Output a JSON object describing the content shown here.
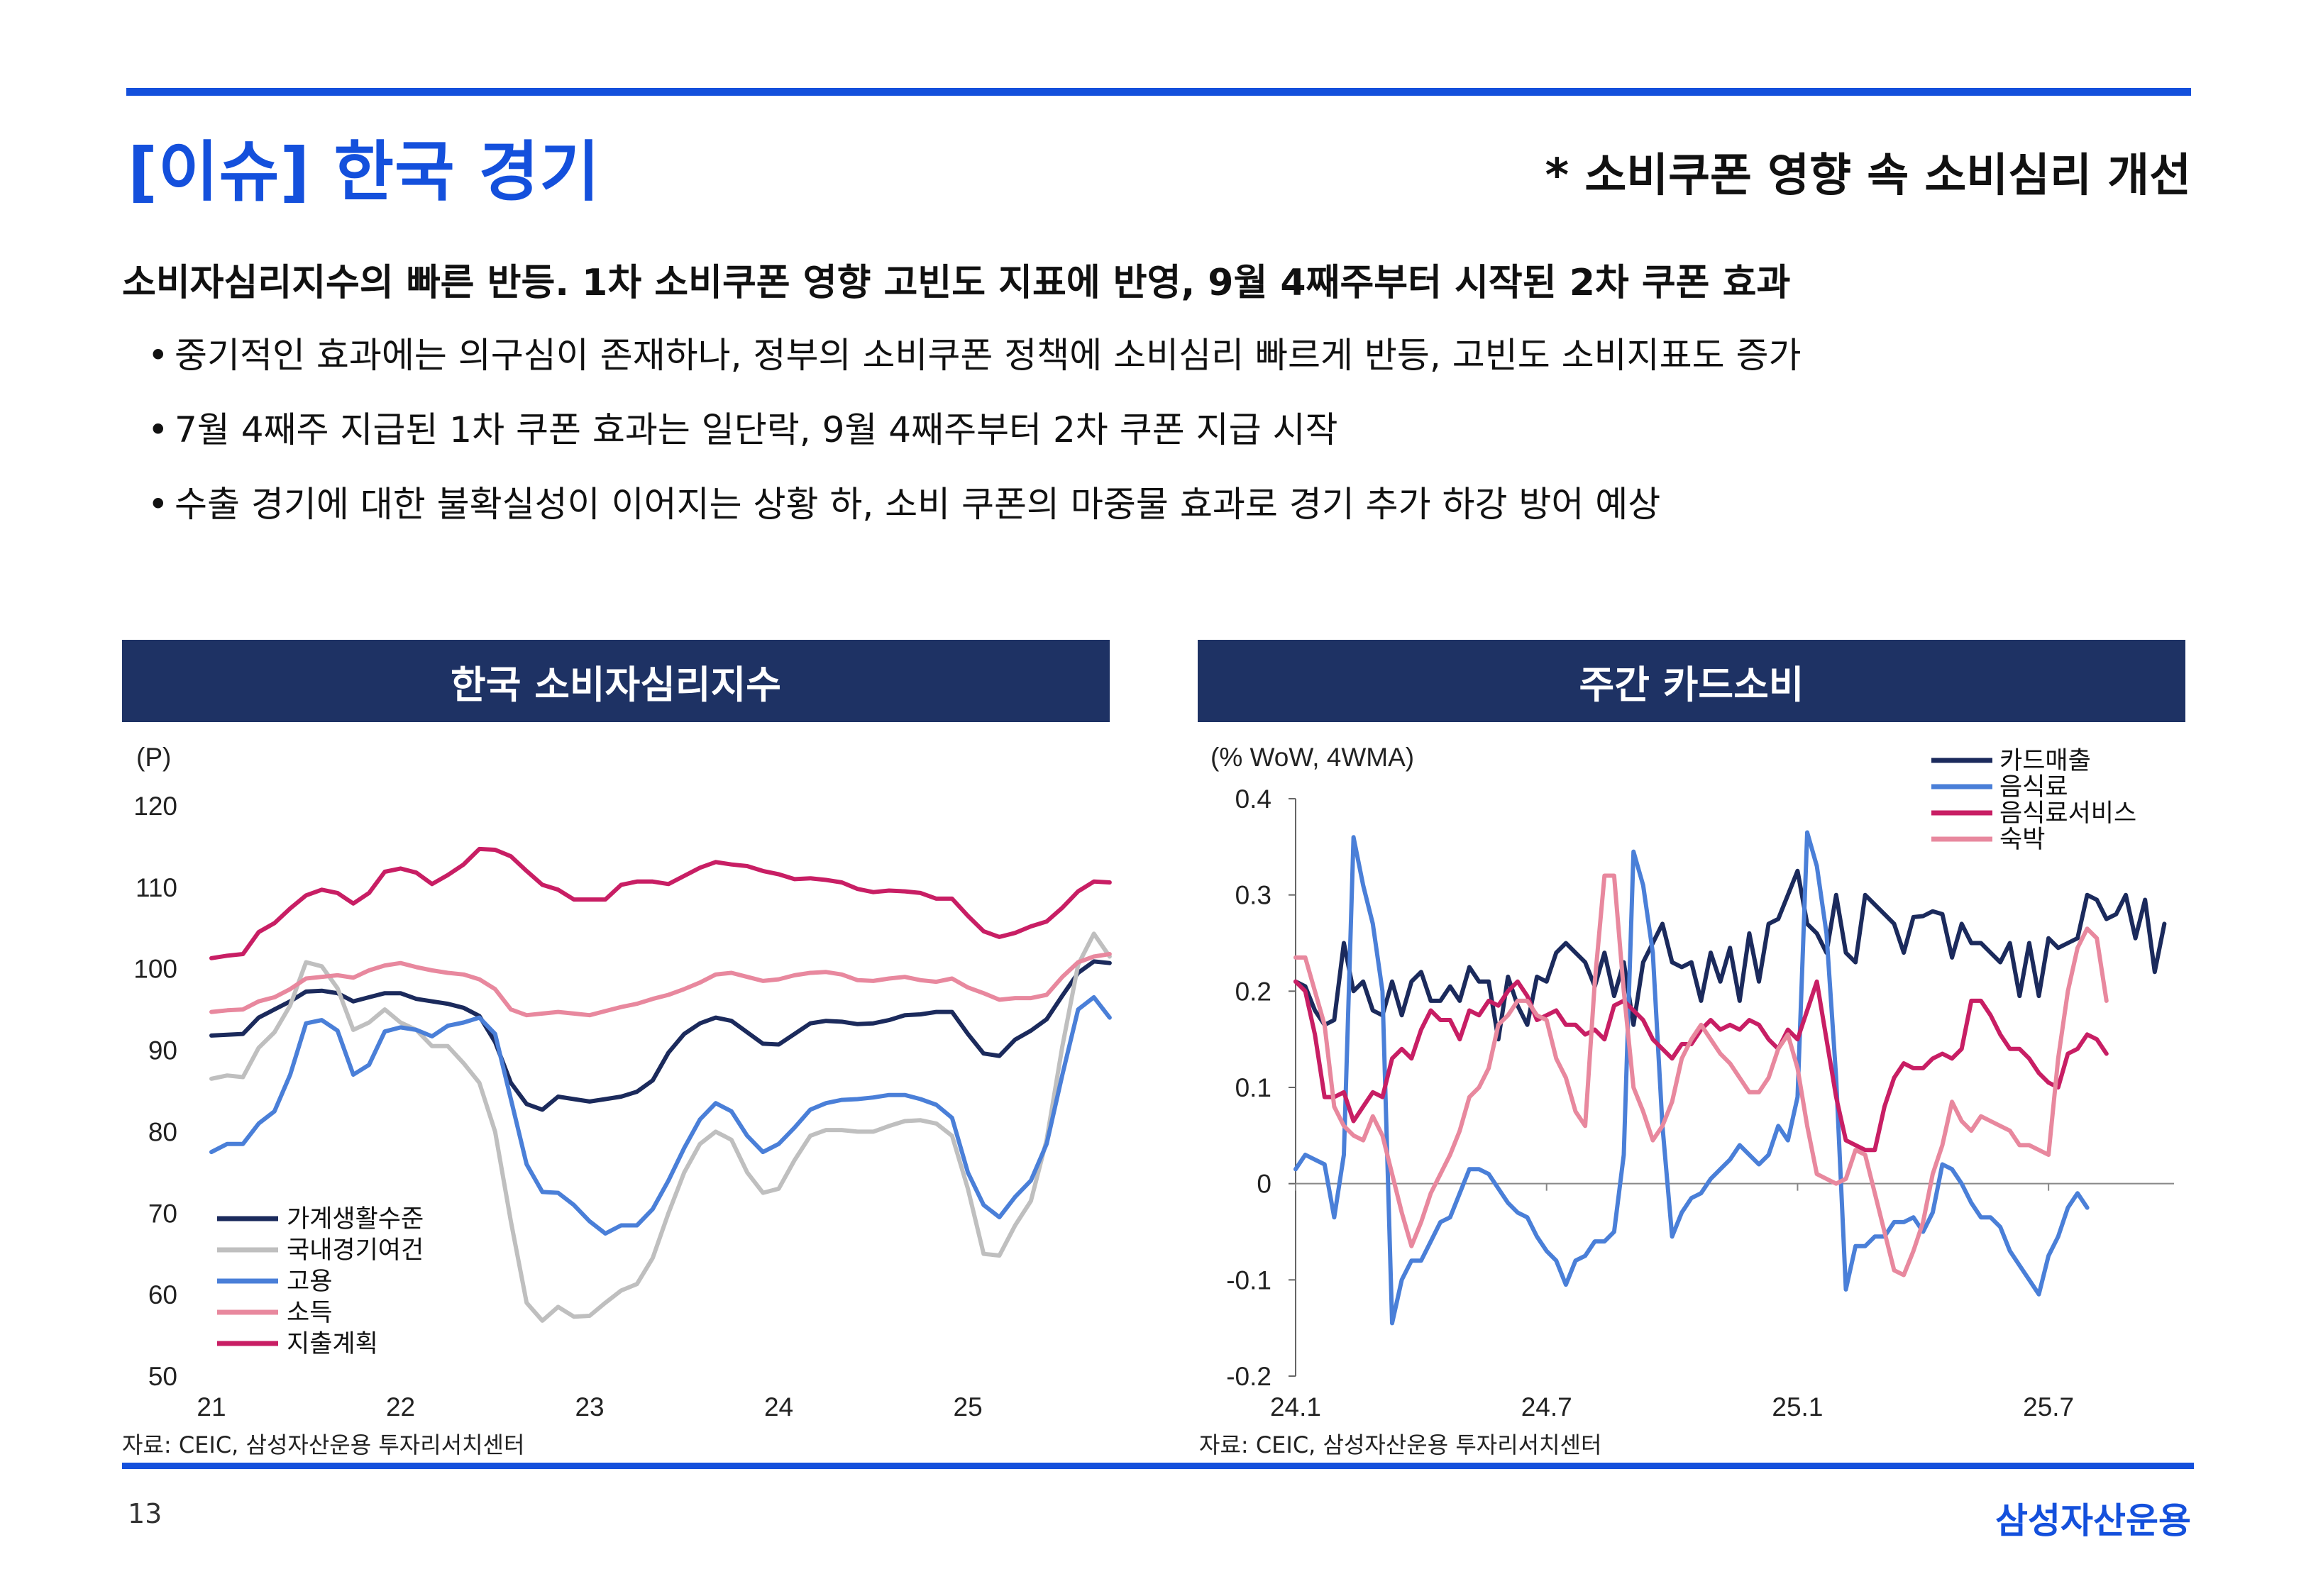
{
  "header": {
    "title": "[이슈] 한국 경기",
    "subtitle": "* 소비쿠폰 영향 속 소비심리 개선"
  },
  "summary": {
    "headline": "소비자심리지수의 빠른 반등. 1차 소비쿠폰 영향 고빈도 지표에 반영, 9월 4째주부터 시작된 2차 쿠폰 효과",
    "bullet_symbol": "•",
    "bullets": [
      "중기적인 효과에는 의구심이 존재하나, 정부의 소비쿠폰 정책에 소비심리 빠르게 반등, 고빈도 소비지표도 증가",
      "7월 4째주 지급된 1차 쿠폰 효과는 일단락, 9월 4째주부터 2차 쿠폰 지급 시작",
      "수출 경기에 대한 불확실성이 이어지는 상황 하, 소비 쿠폰의 마중물 효과로 경기 추가 하강 방어 예상"
    ]
  },
  "left_panel": {
    "title": "한국 소비자심리지수",
    "source": "자료: CEIC, 삼성자산운용 투자리서치센터"
  },
  "right_panel": {
    "title": "주간 카드소비",
    "source": "자료: CEIC, 삼성자산운용 투자리서치센터"
  },
  "footer": {
    "page_number": "13",
    "brand": "삼성자산운용"
  },
  "colors": {
    "accent": "#1450dc",
    "panel_header": "#1e3264"
  },
  "chart_data": [
    {
      "type": "line",
      "title": "한국 소비자심리지수",
      "ylabel": "(P)",
      "ylim": [
        50,
        120
      ],
      "yticks": [
        50,
        60,
        70,
        80,
        90,
        100,
        110,
        120
      ],
      "x_start": 21.0,
      "x_step": 0.08333,
      "xlim": [
        21.0,
        25.72
      ],
      "xticks": [
        {
          "v": 21,
          "label": "21"
        },
        {
          "v": 22,
          "label": "22"
        },
        {
          "v": 23,
          "label": "23"
        },
        {
          "v": 24,
          "label": "24"
        },
        {
          "v": 25,
          "label": "25"
        }
      ],
      "legend_position": "bottom-left",
      "series": [
        {
          "name": "가계생활수준",
          "color": "#1b2a5c",
          "values": [
            91.8,
            91.9,
            92.0,
            94.0,
            95.0,
            96.0,
            97.2,
            97.3,
            97.0,
            96.0,
            96.5,
            97.0,
            97.0,
            96.3,
            96.0,
            95.7,
            95.2,
            94.2,
            91.0,
            86.0,
            83.4,
            82.7,
            84.3,
            84.0,
            83.7,
            84.0,
            84.3,
            84.9,
            86.3,
            89.7,
            92.0,
            93.3,
            94.0,
            93.6,
            92.2,
            90.8,
            90.7,
            92.0,
            93.3,
            93.6,
            93.5,
            93.2,
            93.3,
            93.7,
            94.3,
            94.4,
            94.7,
            94.7,
            92.0,
            89.6,
            89.3,
            91.3,
            92.4,
            93.8,
            96.7,
            99.5,
            100.9,
            100.7
          ]
        },
        {
          "name": "국내경기여건",
          "color": "#bfbfbf",
          "values": [
            86.5,
            86.9,
            86.7,
            90.3,
            92.2,
            95.5,
            100.8,
            100.3,
            97.6,
            92.5,
            93.4,
            95.0,
            93.4,
            92.5,
            90.5,
            90.5,
            88.4,
            86.0,
            80.0,
            69.0,
            59.0,
            56.8,
            58.5,
            57.3,
            57.4,
            59.0,
            60.5,
            61.3,
            64.5,
            70.0,
            75.0,
            78.5,
            80.0,
            79.0,
            75.0,
            72.5,
            73.0,
            76.5,
            79.5,
            80.2,
            80.2,
            80.0,
            80.0,
            80.7,
            81.3,
            81.4,
            81.0,
            79.5,
            73.0,
            65.0,
            64.8,
            68.5,
            71.5,
            79.0,
            90.5,
            100.5,
            104.3,
            101.5
          ]
        },
        {
          "name": "고용",
          "color": "#4a7fd8",
          "values": [
            77.5,
            78.5,
            78.5,
            81.0,
            82.5,
            87.0,
            93.3,
            93.7,
            92.4,
            87.0,
            88.2,
            92.3,
            92.8,
            92.5,
            91.7,
            93.0,
            93.4,
            94.0,
            92.0,
            84.0,
            76.0,
            72.6,
            72.5,
            71.0,
            69.0,
            67.5,
            68.5,
            68.5,
            70.5,
            74.0,
            78.0,
            81.5,
            83.5,
            82.5,
            79.5,
            77.5,
            78.5,
            80.5,
            82.7,
            83.5,
            83.9,
            84.0,
            84.2,
            84.5,
            84.5,
            84.0,
            83.3,
            81.7,
            75.0,
            71.0,
            69.5,
            72.0,
            74.0,
            78.5,
            87.0,
            95.0,
            96.5,
            94.0
          ]
        },
        {
          "name": "소득",
          "color": "#e8889e",
          "values": [
            94.7,
            94.9,
            95.0,
            96.0,
            96.5,
            97.5,
            98.8,
            99.0,
            99.2,
            98.9,
            99.8,
            100.4,
            100.7,
            100.2,
            99.8,
            99.5,
            99.3,
            98.7,
            97.5,
            95.0,
            94.3,
            94.5,
            94.7,
            94.5,
            94.3,
            94.8,
            95.3,
            95.7,
            96.3,
            96.8,
            97.5,
            98.3,
            99.3,
            99.5,
            99.0,
            98.5,
            98.7,
            99.2,
            99.5,
            99.6,
            99.3,
            98.6,
            98.5,
            98.8,
            99.0,
            98.6,
            98.4,
            98.8,
            97.7,
            97.0,
            96.2,
            96.4,
            96.4,
            96.8,
            99.0,
            100.8,
            101.5,
            101.8
          ]
        },
        {
          "name": "지출계획",
          "color": "#c81e64",
          "values": [
            101.3,
            101.6,
            101.8,
            104.5,
            105.6,
            107.4,
            109.0,
            109.7,
            109.3,
            108.0,
            109.3,
            111.9,
            112.3,
            111.8,
            110.4,
            111.5,
            112.8,
            114.7,
            114.6,
            113.8,
            112.0,
            110.3,
            109.7,
            108.5,
            108.5,
            108.5,
            110.3,
            110.7,
            110.7,
            110.4,
            111.4,
            112.4,
            113.1,
            112.8,
            112.6,
            112.0,
            111.6,
            111.0,
            111.1,
            110.9,
            110.6,
            109.8,
            109.4,
            109.6,
            109.5,
            109.3,
            108.6,
            108.6,
            106.5,
            104.6,
            103.9,
            104.4,
            105.2,
            105.8,
            107.5,
            109.5,
            110.7,
            110.6
          ]
        }
      ]
    },
    {
      "type": "line",
      "title": "주간 카드소비",
      "ylabel": "(% WoW, 4WMA)",
      "ylim": [
        -0.2,
        0.4
      ],
      "yticks": [
        -0.2,
        -0.1,
        0,
        0.1,
        0.2,
        0.3,
        0.4
      ],
      "x_start": 0,
      "x_step": 1,
      "xlim": [
        0,
        91
      ],
      "xticks": [
        {
          "v": 0,
          "label": "24.1"
        },
        {
          "v": 26,
          "label": "24.7"
        },
        {
          "v": 52,
          "label": "25.1"
        },
        {
          "v": 78,
          "label": "25.7"
        }
      ],
      "legend_position": "top-right",
      "series": [
        {
          "name": "카드매출",
          "color": "#1b2a5c",
          "values": [
            0.21,
            0.205,
            0.18,
            0.165,
            0.17,
            0.25,
            0.2,
            0.21,
            0.18,
            0.175,
            0.21,
            0.175,
            0.21,
            0.22,
            0.19,
            0.19,
            0.205,
            0.19,
            0.225,
            0.21,
            0.21,
            0.15,
            0.215,
            0.185,
            0.165,
            0.215,
            0.21,
            0.24,
            0.25,
            0.24,
            0.23,
            0.205,
            0.24,
            0.195,
            0.23,
            0.165,
            0.23,
            0.25,
            0.27,
            0.23,
            0.225,
            0.23,
            0.19,
            0.24,
            0.21,
            0.245,
            0.19,
            0.26,
            0.21,
            0.27,
            0.275,
            0.3,
            0.325,
            0.27,
            0.26,
            0.24,
            0.3,
            0.24,
            0.23,
            0.3,
            0.29,
            0.28,
            0.27,
            0.24,
            0.277,
            0.278,
            0.283,
            0.28,
            0.235,
            0.27,
            0.25,
            0.25,
            0.24,
            0.23,
            0.25,
            0.195,
            0.25,
            0.195,
            0.255,
            0.245,
            0.25,
            0.255,
            0.3,
            0.295,
            0.275,
            0.28,
            0.3,
            0.255,
            0.295,
            0.22,
            0.27
          ]
        },
        {
          "name": "음식료",
          "color": "#4a7fd8",
          "values": [
            0.015,
            0.03,
            0.025,
            0.02,
            -0.035,
            0.03,
            0.36,
            0.31,
            0.27,
            0.2,
            -0.145,
            -0.1,
            -0.08,
            -0.08,
            -0.06,
            -0.04,
            -0.035,
            -0.01,
            0.015,
            0.015,
            0.01,
            -0.005,
            -0.02,
            -0.03,
            -0.035,
            -0.055,
            -0.07,
            -0.08,
            -0.105,
            -0.08,
            -0.075,
            -0.06,
            -0.06,
            -0.05,
            0.03,
            0.345,
            0.31,
            0.24,
            0.06,
            -0.055,
            -0.03,
            -0.015,
            -0.01,
            0.005,
            0.015,
            0.025,
            0.04,
            0.03,
            0.02,
            0.03,
            0.06,
            0.045,
            0.09,
            0.365,
            0.33,
            0.26,
            0.11,
            -0.11,
            -0.065,
            -0.065,
            -0.055,
            -0.055,
            -0.04,
            -0.04,
            -0.035,
            -0.05,
            -0.03,
            0.02,
            0.015,
            0.0,
            -0.02,
            -0.035,
            -0.035,
            -0.045,
            -0.07,
            -0.085,
            -0.1,
            -0.115,
            -0.075,
            -0.055,
            -0.025,
            -0.01,
            -0.025
          ]
        },
        {
          "name": "음식료서비스",
          "color": "#c81e64",
          "values": [
            0.21,
            0.2,
            0.155,
            0.09,
            0.09,
            0.095,
            0.065,
            0.08,
            0.095,
            0.09,
            0.13,
            0.14,
            0.13,
            0.16,
            0.18,
            0.17,
            0.17,
            0.15,
            0.18,
            0.175,
            0.19,
            0.185,
            0.2,
            0.21,
            0.195,
            0.17,
            0.175,
            0.18,
            0.165,
            0.165,
            0.155,
            0.16,
            0.15,
            0.185,
            0.19,
            0.18,
            0.17,
            0.15,
            0.14,
            0.13,
            0.145,
            0.145,
            0.16,
            0.17,
            0.16,
            0.165,
            0.16,
            0.17,
            0.165,
            0.15,
            0.14,
            0.16,
            0.15,
            0.18,
            0.21,
            0.15,
            0.09,
            0.045,
            0.04,
            0.035,
            0.035,
            0.08,
            0.11,
            0.125,
            0.12,
            0.12,
            0.13,
            0.135,
            0.13,
            0.14,
            0.19,
            0.19,
            0.175,
            0.155,
            0.14,
            0.14,
            0.13,
            0.115,
            0.105,
            0.1,
            0.135,
            0.14,
            0.155,
            0.15,
            0.135
          ]
        },
        {
          "name": "숙박",
          "color": "#e8889e",
          "values": [
            0.235,
            0.235,
            0.2,
            0.165,
            0.08,
            0.06,
            0.05,
            0.045,
            0.07,
            0.05,
            0.01,
            -0.03,
            -0.065,
            -0.04,
            -0.01,
            0.01,
            0.03,
            0.055,
            0.09,
            0.1,
            0.12,
            0.165,
            0.175,
            0.19,
            0.19,
            0.175,
            0.17,
            0.13,
            0.11,
            0.075,
            0.06,
            0.21,
            0.32,
            0.32,
            0.2,
            0.1,
            0.075,
            0.045,
            0.06,
            0.085,
            0.13,
            0.15,
            0.165,
            0.15,
            0.135,
            0.125,
            0.11,
            0.095,
            0.095,
            0.11,
            0.14,
            0.155,
            0.12,
            0.06,
            0.01,
            0.005,
            0.0,
            0.005,
            0.035,
            0.03,
            -0.01,
            -0.05,
            -0.09,
            -0.095,
            -0.07,
            -0.04,
            0.01,
            0.04,
            0.085,
            0.065,
            0.055,
            0.07,
            0.065,
            0.06,
            0.055,
            0.04,
            0.04,
            0.035,
            0.03,
            0.13,
            0.2,
            0.245,
            0.265,
            0.255,
            0.19
          ]
        }
      ]
    }
  ]
}
